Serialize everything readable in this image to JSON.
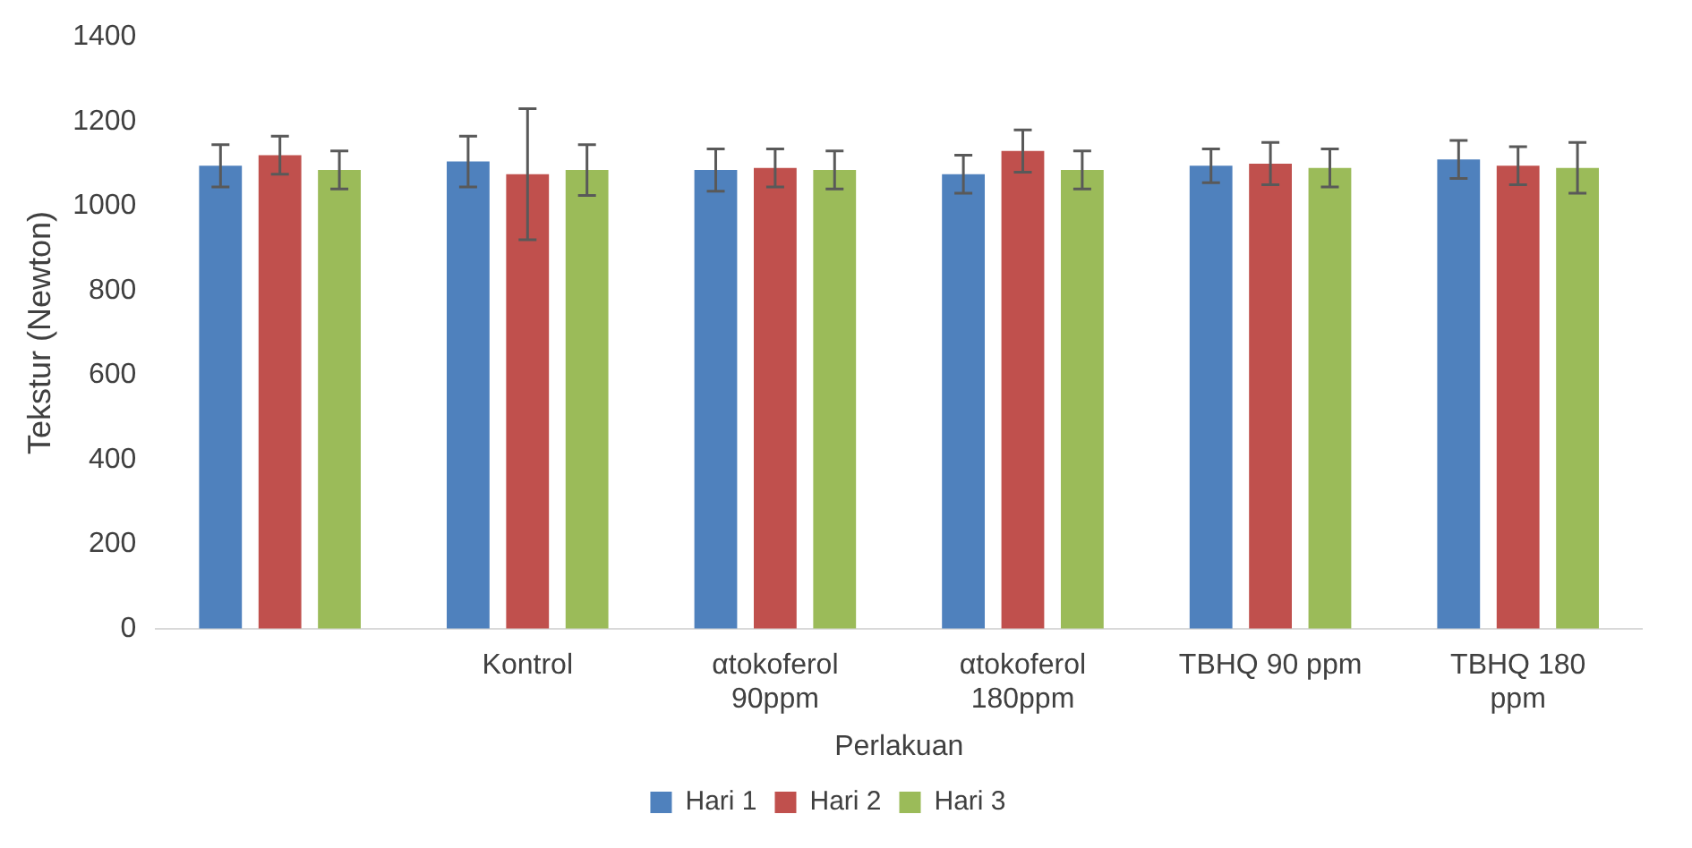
{
  "chart_data": {
    "type": "bar",
    "xlabel": "Perlakuan",
    "ylabel": "Tekstur (Newton)",
    "categories": [
      null,
      "Kontrol",
      "αtokoferol 90ppm",
      "αtokoferol 180ppm",
      "TBHQ 90 ppm",
      "TBHQ 180 ppm"
    ],
    "series": [
      {
        "name": "Hari 1",
        "color": "#4f81bd",
        "values": [
          1095,
          1105,
          1085,
          1075,
          1095,
          1110
        ],
        "errors": [
          50,
          60,
          50,
          45,
          40,
          45
        ]
      },
      {
        "name": "Hari 2",
        "color": "#c0504d",
        "values": [
          1120,
          1075,
          1090,
          1130,
          1100,
          1095
        ],
        "errors": [
          45,
          155,
          45,
          50,
          50,
          45
        ]
      },
      {
        "name": "Hari 3",
        "color": "#9bbb59",
        "values": [
          1085,
          1085,
          1085,
          1085,
          1090,
          1090
        ],
        "errors": [
          45,
          60,
          45,
          45,
          45,
          60
        ]
      }
    ],
    "ylim": [
      0,
      1400
    ],
    "yticks": [
      0,
      200,
      400,
      600,
      800,
      1000,
      1200,
      1400
    ],
    "grid": false,
    "legend": "bottom"
  }
}
